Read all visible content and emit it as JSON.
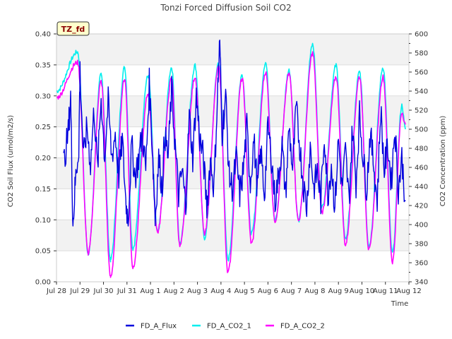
{
  "chart_data": {
    "type": "line",
    "title": "Tonzi Forced Diffusion Soil CO2",
    "badge": "TZ_fd",
    "xlabel": "Time",
    "ylabel_left": "CO2 Soil Flux (umol/m2/s)",
    "ylabel_right": "CO2 Concentration (ppm)",
    "x_ticks": [
      "Jul 28",
      "Jul 29",
      "Jul 30",
      "Jul 31",
      "Aug 1",
      "Aug 2",
      "Aug 3",
      "Aug 4",
      "Aug 5",
      "Aug 6",
      "Aug 7",
      "Aug 8",
      "Aug 9",
      "Aug 10",
      "Aug 11",
      "Aug 12"
    ],
    "xlim_days": [
      0,
      15
    ],
    "ylim_left": [
      0.0,
      0.4
    ],
    "y_ticks_left": [
      "0.00",
      "0.05",
      "0.10",
      "0.15",
      "0.20",
      "0.25",
      "0.30",
      "0.35",
      "0.40"
    ],
    "ylim_right": [
      340,
      600
    ],
    "y_ticks_right": [
      "340",
      "360",
      "380",
      "400",
      "420",
      "440",
      "460",
      "480",
      "500",
      "520",
      "540",
      "560",
      "580",
      "600"
    ],
    "legend": [
      {
        "name": "FD_A_Flux",
        "color": "#0000dd"
      },
      {
        "name": "FD_A_CO2_1",
        "color": "#00eeee"
      },
      {
        "name": "FD_A_CO2_2",
        "color": "#ff00ff"
      }
    ],
    "series": [
      {
        "name": "FD_A_CO2_1",
        "axis": "right",
        "color": "#00eeee",
        "peaks": [
          [
            0.9,
            581
          ],
          [
            1.9,
            557
          ],
          [
            2.9,
            565
          ],
          [
            3.9,
            556
          ],
          [
            4.9,
            565
          ],
          [
            5.9,
            567
          ],
          [
            6.9,
            570
          ],
          [
            7.9,
            557
          ],
          [
            8.9,
            570
          ],
          [
            9.9,
            562
          ],
          [
            10.9,
            590
          ],
          [
            11.9,
            567
          ],
          [
            12.9,
            560
          ],
          [
            13.9,
            565
          ],
          [
            14.7,
            525
          ]
        ],
        "troughs": [
          [
            0.0,
            540
          ],
          [
            1.35,
            370
          ],
          [
            2.3,
            363
          ],
          [
            3.25,
            375
          ],
          [
            4.3,
            392
          ],
          [
            5.25,
            380
          ],
          [
            6.3,
            386
          ],
          [
            7.3,
            363
          ],
          [
            8.3,
            390
          ],
          [
            9.3,
            404
          ],
          [
            10.3,
            404
          ],
          [
            11.3,
            418
          ],
          [
            12.3,
            385
          ],
          [
            13.3,
            378
          ],
          [
            14.3,
            370
          ],
          [
            14.85,
            500
          ]
        ]
      },
      {
        "name": "FD_A_CO2_2",
        "axis": "right",
        "color": "#ff00ff",
        "peaks": [
          [
            0.9,
            570
          ],
          [
            1.9,
            550
          ],
          [
            2.9,
            553
          ],
          [
            3.9,
            537
          ],
          [
            4.9,
            553
          ],
          [
            5.9,
            555
          ],
          [
            6.9,
            565
          ],
          [
            7.9,
            553
          ],
          [
            8.9,
            560
          ],
          [
            9.9,
            558
          ],
          [
            10.9,
            580
          ],
          [
            11.9,
            555
          ],
          [
            12.9,
            555
          ],
          [
            13.9,
            555
          ],
          [
            14.7,
            518
          ]
        ],
        "troughs": [
          [
            0.0,
            533
          ],
          [
            1.35,
            370
          ],
          [
            2.3,
            345
          ],
          [
            3.25,
            355
          ],
          [
            4.3,
            392
          ],
          [
            5.25,
            377
          ],
          [
            6.3,
            390
          ],
          [
            7.3,
            350
          ],
          [
            8.3,
            380
          ],
          [
            9.3,
            404
          ],
          [
            10.3,
            404
          ],
          [
            11.3,
            413
          ],
          [
            12.3,
            379
          ],
          [
            13.3,
            373
          ],
          [
            14.3,
            361
          ],
          [
            14.85,
            505
          ]
        ]
      },
      {
        "name": "FD_A_Flux",
        "axis": "left",
        "color": "#0000dd",
        "points": [
          [
            0.3,
            0.19
          ],
          [
            0.5,
            0.24
          ],
          [
            0.6,
            0.3
          ],
          [
            0.7,
            0.09
          ],
          [
            0.8,
            0.16
          ],
          [
            0.95,
            0.22
          ],
          [
            1.0,
            0.34
          ],
          [
            1.15,
            0.2
          ],
          [
            1.3,
            0.25
          ],
          [
            1.45,
            0.19
          ],
          [
            1.6,
            0.28
          ],
          [
            1.75,
            0.18
          ],
          [
            1.9,
            0.3
          ],
          [
            2.05,
            0.2
          ],
          [
            2.2,
            0.29
          ],
          [
            2.35,
            0.2
          ],
          [
            2.5,
            0.24
          ],
          [
            2.65,
            0.17
          ],
          [
            2.8,
            0.23
          ],
          [
            2.95,
            0.13
          ],
          [
            3.05,
            0.1
          ],
          [
            3.2,
            0.22
          ],
          [
            3.35,
            0.17
          ],
          [
            3.5,
            0.2
          ],
          [
            3.65,
            0.24
          ],
          [
            3.8,
            0.18
          ],
          [
            3.95,
            0.32
          ],
          [
            4.1,
            0.2
          ],
          [
            4.2,
            0.1
          ],
          [
            4.35,
            0.2
          ],
          [
            4.5,
            0.15
          ],
          [
            4.6,
            0.24
          ],
          [
            4.75,
            0.2
          ],
          [
            4.9,
            0.31
          ],
          [
            5.05,
            0.22
          ],
          [
            5.2,
            0.14
          ],
          [
            5.35,
            0.18
          ],
          [
            5.5,
            0.12
          ],
          [
            5.65,
            0.27
          ],
          [
            5.8,
            0.2
          ],
          [
            5.95,
            0.3
          ],
          [
            6.1,
            0.23
          ],
          [
            6.25,
            0.2
          ],
          [
            6.4,
            0.12
          ],
          [
            6.55,
            0.2
          ],
          [
            6.7,
            0.15
          ],
          [
            6.85,
            0.3
          ],
          [
            6.95,
            0.39
          ],
          [
            7.05,
            0.24
          ],
          [
            7.2,
            0.3
          ],
          [
            7.35,
            0.17
          ],
          [
            7.5,
            0.15
          ],
          [
            7.65,
            0.2
          ],
          [
            7.8,
            0.14
          ],
          [
            7.95,
            0.18
          ],
          [
            8.1,
            0.25
          ],
          [
            8.25,
            0.16
          ],
          [
            8.4,
            0.23
          ],
          [
            8.55,
            0.15
          ],
          [
            8.7,
            0.21
          ],
          [
            8.85,
            0.14
          ],
          [
            9.0,
            0.25
          ],
          [
            9.15,
            0.2
          ],
          [
            9.3,
            0.13
          ],
          [
            9.45,
            0.17
          ],
          [
            9.6,
            0.22
          ],
          [
            9.75,
            0.14
          ],
          [
            9.9,
            0.25
          ],
          [
            10.05,
            0.18
          ],
          [
            10.2,
            0.28
          ],
          [
            10.35,
            0.22
          ],
          [
            10.5,
            0.16
          ],
          [
            10.65,
            0.12
          ],
          [
            10.8,
            0.22
          ],
          [
            10.95,
            0.15
          ],
          [
            11.1,
            0.18
          ],
          [
            11.25,
            0.13
          ],
          [
            11.4,
            0.24
          ],
          [
            11.55,
            0.14
          ],
          [
            11.7,
            0.19
          ],
          [
            11.85,
            0.12
          ],
          [
            12.0,
            0.23
          ],
          [
            12.15,
            0.15
          ],
          [
            12.3,
            0.21
          ],
          [
            12.45,
            0.13
          ],
          [
            12.6,
            0.25
          ],
          [
            12.75,
            0.16
          ],
          [
            12.9,
            0.27
          ],
          [
            13.05,
            0.2
          ],
          [
            13.2,
            0.15
          ],
          [
            13.35,
            0.24
          ],
          [
            13.5,
            0.19
          ],
          [
            13.65,
            0.13
          ],
          [
            13.8,
            0.28
          ],
          [
            13.95,
            0.18
          ],
          [
            14.1,
            0.22
          ],
          [
            14.25,
            0.16
          ],
          [
            14.4,
            0.25
          ],
          [
            14.55,
            0.15
          ],
          [
            14.7,
            0.2
          ],
          [
            14.85,
            0.13
          ]
        ]
      }
    ]
  }
}
